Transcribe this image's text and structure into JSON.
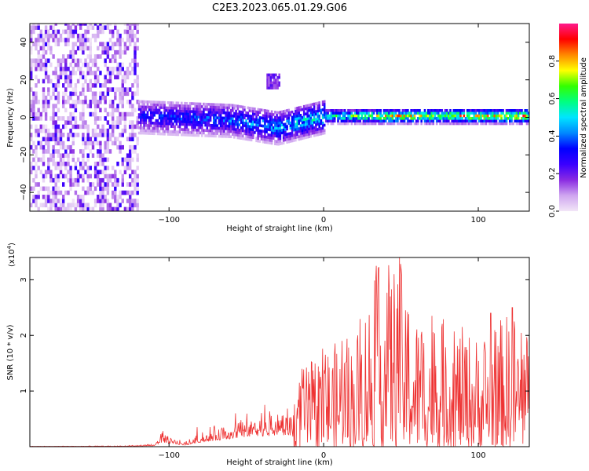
{
  "chart_data": [
    {
      "type": "heatmap",
      "title": "C2E3.2023.065.01.29.G06",
      "xlabel": "Height of straight line (km)",
      "ylabel": "Frequency (Hz)",
      "xlim": [
        -190,
        133
      ],
      "ylim": [
        -50,
        50
      ],
      "x_ticks": [
        -100,
        0,
        100
      ],
      "y_ticks": [
        -40,
        -20,
        0,
        20,
        40
      ],
      "colorbar": {
        "label": "Normalized spectral amplitude",
        "range": [
          0,
          1
        ],
        "ticks": [
          "0.0",
          "0.2",
          "0.4",
          "0.6",
          "0.8"
        ],
        "tick_values": [
          0.0,
          0.2,
          0.4,
          0.6,
          0.8
        ],
        "colors": [
          "#f2e6f7",
          "#cfa6f0",
          "#8a2be2",
          "#3a00ff",
          "#0000ff",
          "#0088ff",
          "#00e5ff",
          "#00ff80",
          "#33ff00",
          "#ffff00",
          "#ff8800",
          "#ff0000",
          "#ff1a8c"
        ]
      },
      "features": [
        {
          "name": "broadband noise",
          "x_range": [
            -190,
            -120
          ],
          "y_range": [
            -50,
            50
          ],
          "amplitude": 0.15
        },
        {
          "name": "carrier band",
          "x_range": [
            -120,
            133
          ],
          "center_hz_at": [
            [
              -120,
              0
            ],
            [
              -60,
              -2
            ],
            [
              -30,
              -6
            ],
            [
              0,
              0
            ],
            [
              133,
              0
            ]
          ],
          "amplitude_at": [
            [
              -120,
              0.35
            ],
            [
              -60,
              0.45
            ],
            [
              0,
              0.6
            ],
            [
              40,
              0.85
            ],
            [
              133,
              0.9
            ]
          ]
        },
        {
          "name": "secondary blob",
          "x": -33,
          "y": 19,
          "amplitude": 0.2
        }
      ]
    },
    {
      "type": "line",
      "title": "",
      "xlabel": "Height of straight line (km)",
      "ylabel": "SNR (10 * v/v)",
      "yscale_label": "(x10",
      "yscale_exp": "4",
      "yscale_close": ")",
      "xlim": [
        -190,
        133
      ],
      "ylim": [
        0,
        3.4
      ],
      "x_ticks": [
        -100,
        0,
        100
      ],
      "y_ticks": [
        1,
        2,
        3
      ],
      "line_color": "#ee3333",
      "envelope": [
        {
          "x": -190,
          "y": 0.01
        },
        {
          "x": -130,
          "y": 0.02
        },
        {
          "x": -110,
          "y": 0.05
        },
        {
          "x": -105,
          "y": 0.28
        },
        {
          "x": -90,
          "y": 0.1
        },
        {
          "x": -80,
          "y": 0.3
        },
        {
          "x": -60,
          "y": 0.55
        },
        {
          "x": -40,
          "y": 0.75
        },
        {
          "x": -20,
          "y": 0.8
        },
        {
          "x": -15,
          "y": 1.35
        },
        {
          "x": 0,
          "y": 1.8
        },
        {
          "x": 20,
          "y": 2.0
        },
        {
          "x": 34,
          "y": 3.25
        },
        {
          "x": 49,
          "y": 3.4
        },
        {
          "x": 60,
          "y": 2.4
        },
        {
          "x": 80,
          "y": 2.3
        },
        {
          "x": 100,
          "y": 2.0
        },
        {
          "x": 110,
          "y": 2.2
        },
        {
          "x": 122,
          "y": 2.5
        },
        {
          "x": 133,
          "y": 2.0
        }
      ],
      "peaks": [
        {
          "x": -104,
          "y": 0.28
        },
        {
          "x": -82,
          "y": 0.35
        },
        {
          "x": -57,
          "y": 0.6
        },
        {
          "x": -38,
          "y": 0.75
        },
        {
          "x": -14,
          "y": 1.4
        },
        {
          "x": 12,
          "y": 1.9
        },
        {
          "x": 34,
          "y": 3.25
        },
        {
          "x": 43,
          "y": 2.7
        },
        {
          "x": 49,
          "y": 3.4
        },
        {
          "x": 53,
          "y": 2.45
        },
        {
          "x": 70,
          "y": 2.35
        },
        {
          "x": 108,
          "y": 2.4
        },
        {
          "x": 122,
          "y": 2.5
        }
      ]
    }
  ]
}
